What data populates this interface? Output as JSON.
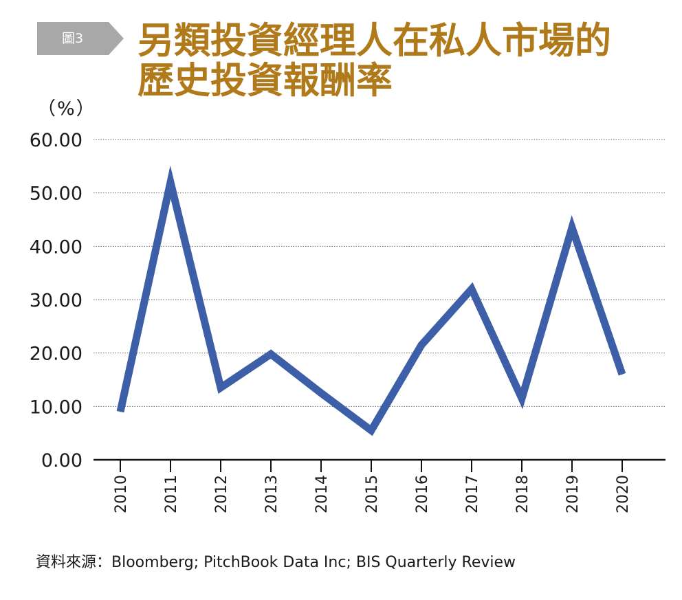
{
  "figure": {
    "badge": "圖3",
    "title_lines": [
      "另類投資經理人在私人市場的",
      "歷史投資報酬率"
    ],
    "unit": "（%）",
    "source_prefix": "資料來源：",
    "source_text": "Bloomberg; PitchBook Data Inc; BIS Quarterly Review"
  },
  "colors": {
    "badge": "#a8a8a8",
    "title": "#b07a1a",
    "line": "#3d5fa8",
    "grid": "#666666",
    "axis": "#111111"
  },
  "chart_data": {
    "type": "line",
    "x": [
      "2010",
      "2011",
      "2012",
      "2013",
      "2014",
      "2015",
      "2016",
      "2017",
      "2018",
      "2019",
      "2020"
    ],
    "series": [
      {
        "values": [
          9.0,
          52.0,
          13.5,
          19.8,
          12.5,
          5.5,
          21.5,
          32.0,
          11.5,
          43.5,
          16.0
        ]
      }
    ],
    "ylim": [
      0,
      60
    ],
    "yticks": [
      "0.00",
      "10.00",
      "20.00",
      "30.00",
      "40.00",
      "50.00",
      "60.00"
    ],
    "grid": true,
    "grid_style": "dotted",
    "x_tick_rotation": "vertical",
    "legend": "none"
  }
}
